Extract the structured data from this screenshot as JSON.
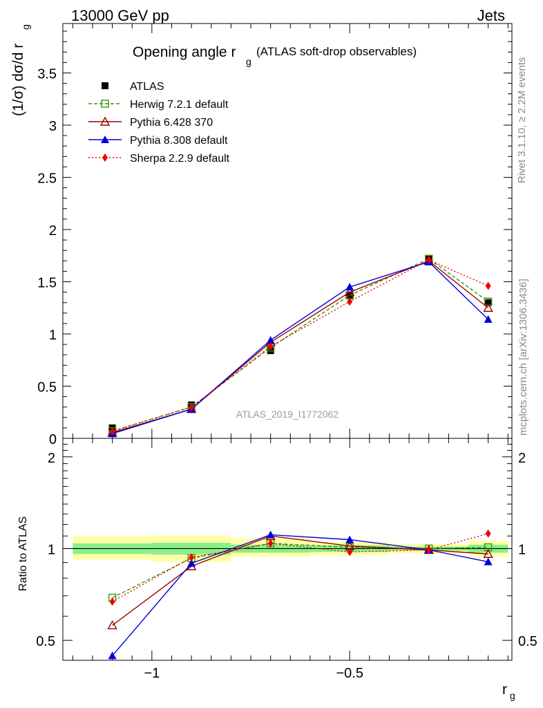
{
  "header": {
    "left": "13000 GeV pp",
    "right": "Jets"
  },
  "side_labels": {
    "rivet": "Rivet 3.1.10, ≥ 2.2M events",
    "mcplots": "mcplots.cern.ch [arXiv:1306.3436]"
  },
  "chart_data": [
    {
      "type": "line",
      "title": "Opening angle r",
      "title_sub": "g",
      "title_note": "(ATLAS soft-drop observables)",
      "watermark": "ATLAS_2019_I1772062",
      "ylabel": "(1/σ) dσ/d r",
      "ylabel_sub": "g",
      "ylim": [
        0,
        4.0
      ],
      "yticks": [
        0,
        0.5,
        1,
        1.5,
        2,
        2.5,
        3,
        3.5
      ],
      "ytick_labels": [
        "0",
        "0.5",
        "1",
        "1.5",
        "2",
        "2.5",
        "3",
        "3.5"
      ],
      "x": [
        -1.1,
        -0.9,
        -0.7,
        -0.5,
        -0.3,
        -0.15
      ],
      "series": [
        {
          "name": "ATLAS",
          "color": "#000000",
          "marker": "square-filled",
          "line": "none",
          "values": [
            0.1,
            0.32,
            0.84,
            1.37,
            1.72,
            1.3
          ]
        },
        {
          "name": "Herwig 7.2.1 default",
          "color": "#339900",
          "marker": "square-open",
          "line": "dashed",
          "values": [
            0.07,
            0.3,
            0.87,
            1.37,
            1.72,
            1.31
          ]
        },
        {
          "name": "Pythia 6.428 370",
          "color": "#990000",
          "marker": "triangle-open",
          "line": "solid",
          "values": [
            0.055,
            0.28,
            0.92,
            1.4,
            1.7,
            1.25
          ]
        },
        {
          "name": "Pythia 8.308 default",
          "color": "#0000dd",
          "marker": "triangle-filled",
          "line": "solid",
          "values": [
            0.045,
            0.28,
            0.94,
            1.45,
            1.69,
            1.14
          ]
        },
        {
          "name": "Sherpa 2.2.9 default",
          "color": "#ee0000",
          "marker": "diamond-filled",
          "line": "dotted",
          "values": [
            0.067,
            0.3,
            0.88,
            1.31,
            1.71,
            1.46
          ]
        }
      ]
    },
    {
      "type": "line",
      "ylabel": "Ratio to ATLAS",
      "xlabel": "r",
      "xlabel_sub": "g",
      "log_y": true,
      "ylim": [
        0.43,
        2.3
      ],
      "yticks": [
        0.5,
        1,
        2
      ],
      "ytick_labels": [
        "0.5",
        "1",
        "2"
      ],
      "xlim": [
        -1.225,
        -0.09
      ],
      "xticks": [
        -1,
        -0.5
      ],
      "xtick_labels": [
        "−1",
        "−0.5"
      ],
      "x": [
        -1.1,
        -0.9,
        -0.7,
        -0.5,
        -0.3,
        -0.15
      ],
      "bins": [
        [
          -1.2,
          -1.0
        ],
        [
          -1.0,
          -0.8
        ],
        [
          -0.8,
          -0.6
        ],
        [
          -0.6,
          -0.4
        ],
        [
          -0.4,
          -0.2
        ],
        [
          -0.2,
          -0.1
        ]
      ],
      "band_inner": [
        [
          0.96,
          1.04
        ],
        [
          0.955,
          1.045
        ],
        [
          0.97,
          1.03
        ],
        [
          0.975,
          1.025
        ],
        [
          0.985,
          1.015
        ],
        [
          0.97,
          1.03
        ]
      ],
      "band_outer": [
        [
          0.92,
          1.1
        ],
        [
          0.905,
          1.105
        ],
        [
          0.94,
          1.08
        ],
        [
          0.95,
          1.05
        ],
        [
          0.965,
          1.035
        ],
        [
          0.94,
          1.06
        ]
      ],
      "series": [
        {
          "name": "Herwig 7.2.1 default",
          "values": [
            0.69,
            0.93,
            1.04,
            1.01,
            1.0,
            1.01
          ]
        },
        {
          "name": "Pythia 6.428 370",
          "values": [
            0.56,
            0.875,
            1.1,
            1.02,
            0.99,
            0.96
          ]
        },
        {
          "name": "Pythia 8.308 default",
          "values": [
            0.445,
            0.895,
            1.11,
            1.07,
            0.99,
            0.905
          ]
        },
        {
          "name": "Sherpa 2.2.9 default",
          "values": [
            0.67,
            0.935,
            1.04,
            0.975,
            0.99,
            1.12
          ]
        }
      ]
    }
  ]
}
